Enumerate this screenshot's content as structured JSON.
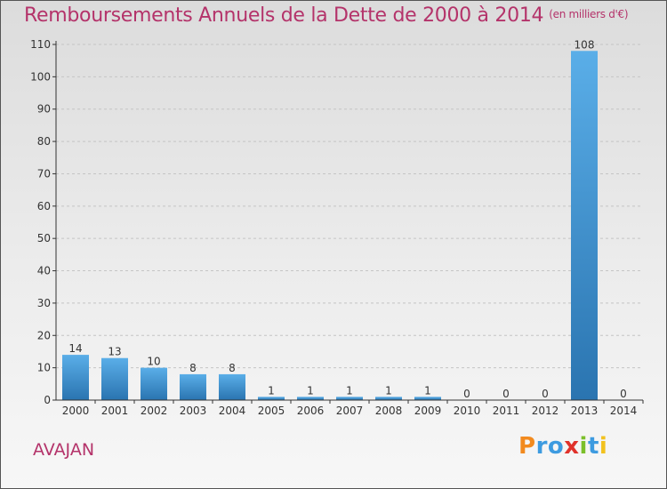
{
  "header": {
    "title": "Remboursements Annuels de la Dette de 2000 à 2014",
    "unit": "(en milliers d'€)"
  },
  "footer": {
    "commune": "AVAJAN",
    "logo_letters": [
      "P",
      "r",
      "o",
      "x",
      "i",
      "t",
      "i"
    ],
    "logo_colors": [
      "#f28a1e",
      "#3d9be0",
      "#3d9be0",
      "#e0322b",
      "#7bbf2a",
      "#3d9be0",
      "#f2c21e"
    ]
  },
  "chart_data": {
    "type": "bar",
    "title": "Remboursements Annuels de la Dette de 2000 à 2014",
    "subtitle": "(en milliers d'€)",
    "categories": [
      "2000",
      "2001",
      "2002",
      "2003",
      "2004",
      "2005",
      "2006",
      "2007",
      "2008",
      "2009",
      "2010",
      "2011",
      "2012",
      "2013",
      "2014"
    ],
    "values": [
      14,
      13,
      10,
      8,
      8,
      1,
      1,
      1,
      1,
      1,
      0,
      0,
      0,
      108,
      0
    ],
    "ylim": [
      0,
      110
    ],
    "yticks": [
      0,
      10,
      20,
      30,
      40,
      50,
      60,
      70,
      80,
      90,
      100,
      110
    ],
    "grid": true,
    "bar_color_top": "#5aaee8",
    "bar_color_bottom": "#2a74b0",
    "title_color": "#b4336a"
  }
}
